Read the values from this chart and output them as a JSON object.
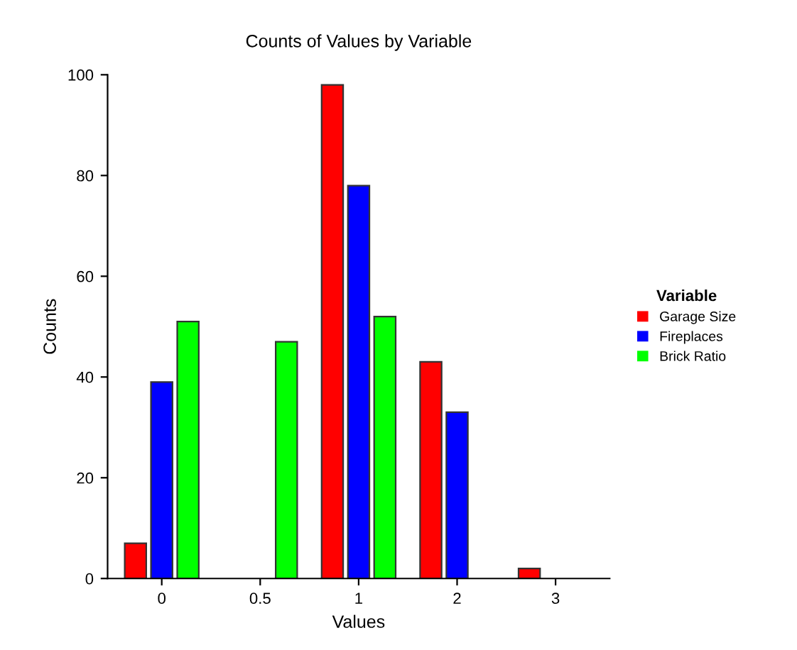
{
  "chart_data": {
    "type": "bar",
    "title": "Counts of Values by Variable",
    "xlabel": "Values",
    "ylabel": "Counts",
    "legend_title": "Variable",
    "categories": [
      "0",
      "0.5",
      "1",
      "2",
      "3"
    ],
    "series": [
      {
        "name": "Garage Size",
        "color": "#ff0000",
        "values": [
          7,
          null,
          98,
          43,
          2
        ]
      },
      {
        "name": "Fireplaces",
        "color": "#0000ff",
        "values": [
          39,
          null,
          78,
          33,
          null
        ]
      },
      {
        "name": "Brick Ratio",
        "color": "#00ff00",
        "values": [
          51,
          47,
          52,
          null,
          null
        ]
      }
    ],
    "ylim": [
      0,
      100
    ],
    "yticks": [
      0,
      20,
      40,
      60,
      80,
      100
    ],
    "grid": false,
    "legend": "right"
  }
}
